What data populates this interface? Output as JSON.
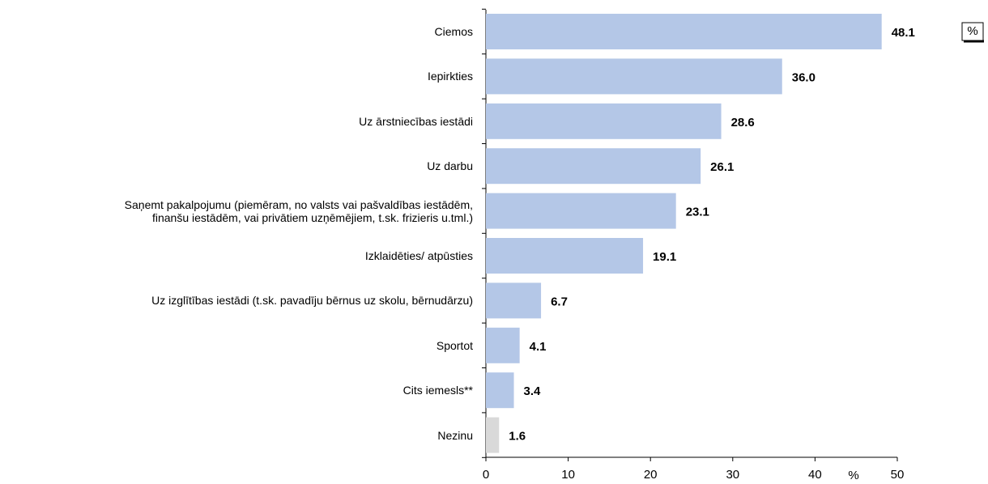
{
  "chart_data": {
    "type": "barh",
    "categories": [
      "Ciemos",
      "Iepirkties",
      "Uz ārstniecības iestādi",
      "Uz darbu",
      "Saņemt pakalpojumu (piemēram, no valsts vai pašvaldības iestādēm,\nfinanšu iestādēm, vai privātiem uzņēmējiem, t.sk. frizieris u.tml.)",
      "Izklaidēties/ atpūsties",
      "Uz izglītības iestādi (t.sk. pavadīju bērnus uz skolu, bērnudārzu)",
      "Sportot",
      "Cits iemesls**",
      "Nezinu"
    ],
    "values": [
      48.1,
      36.0,
      28.6,
      26.1,
      23.1,
      19.1,
      6.7,
      4.1,
      3.4,
      1.6
    ],
    "value_labels": [
      "48.1",
      "36.0",
      "28.6",
      "26.1",
      "23.1",
      "19.1",
      "6.7",
      "4.1",
      "3.4",
      "1.6"
    ],
    "colors": [
      "#b4c7e7",
      "#b4c7e7",
      "#b4c7e7",
      "#b4c7e7",
      "#b4c7e7",
      "#b4c7e7",
      "#b4c7e7",
      "#b4c7e7",
      "#b4c7e7",
      "#d9d9d9"
    ],
    "xlim": [
      0,
      50
    ],
    "xticks": [
      0,
      10,
      20,
      30,
      40,
      50
    ],
    "xlabel": "%",
    "unit_box": "%"
  }
}
